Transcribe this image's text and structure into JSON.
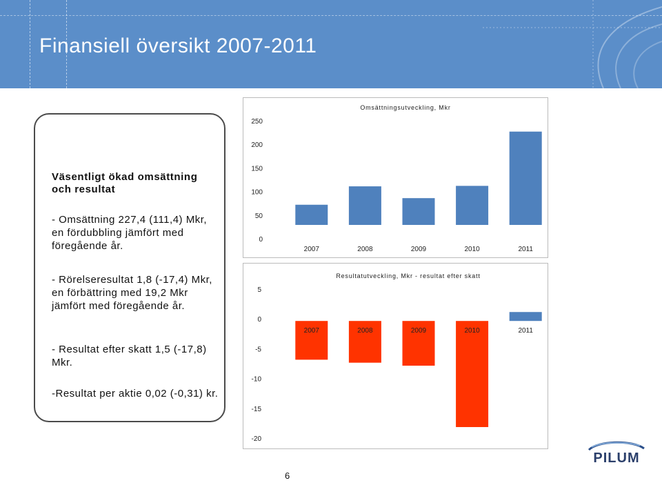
{
  "slide": {
    "title": "Finansiell översikt 2007-2011",
    "page_number": "6"
  },
  "panel": {
    "heading": "Väsentligt ökad omsättning och resultat",
    "bullets": [
      "- Omsättning 227,4 (111,4) Mkr, en fördubbling jämfört med föregående år.",
      "- Rörelseresultat 1,8 (-17,4) Mkr, en  förbättring med 19,2 Mkr jämfört med föregående år.",
      "- Resultat efter skatt 1,5 (-17,8) Mkr.",
      "-Resultat per aktie 0,02 (-0,31) kr."
    ]
  },
  "logo": {
    "text": "PILUM"
  },
  "colors": {
    "header": "#5b8ec9",
    "bar_positive": "#4f81bd",
    "bar_negative": "#ff3300"
  },
  "chart_data": [
    {
      "type": "bar",
      "title": "Omsättningsutveckling, Mkr",
      "categories": [
        "2007",
        "2008",
        "2009",
        "2010",
        "2011"
      ],
      "values": [
        72,
        111,
        86,
        112,
        227
      ],
      "ylim": [
        0,
        250
      ],
      "yticks": [
        "250",
        "200",
        "150",
        "100",
        "50",
        "0"
      ],
      "grid": false,
      "color": "#4f81bd"
    },
    {
      "type": "bar",
      "title": "Resultatutveckling, Mkr - resultat efter skatt",
      "categories": [
        "2007",
        "2008",
        "2009",
        "2010",
        "2011"
      ],
      "values": [
        -6.5,
        -7.0,
        -7.5,
        -17.8,
        1.5
      ],
      "ylim": [
        -20,
        10
      ],
      "yticks": [
        "5",
        "0",
        "-5",
        "-10",
        "-15",
        "-20"
      ],
      "grid": false,
      "color_negative": "#ff3300",
      "color_positive": "#4f81bd"
    }
  ]
}
